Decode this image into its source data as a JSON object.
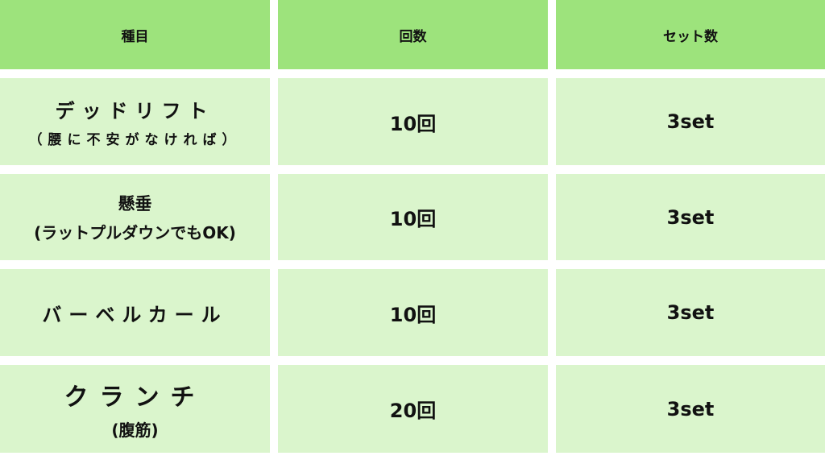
{
  "colors": {
    "header": "#9de37c",
    "body": "#daf5cc"
  },
  "headers": [
    "種目",
    "回数",
    "セット数"
  ],
  "rows": [
    {
      "name": "デッドリフト",
      "note": "（腰に不安がなければ）",
      "reps": "10回",
      "sets": "3set"
    },
    {
      "name": "懸垂",
      "note": "(ラットプルダウンでもOK)",
      "reps": "10回",
      "sets": "3set"
    },
    {
      "name": "バーベルカール",
      "note": "",
      "reps": "10回",
      "sets": "3set"
    },
    {
      "name": "クランチ",
      "note": "(腹筋)",
      "reps": "20回",
      "sets": "3set"
    }
  ]
}
